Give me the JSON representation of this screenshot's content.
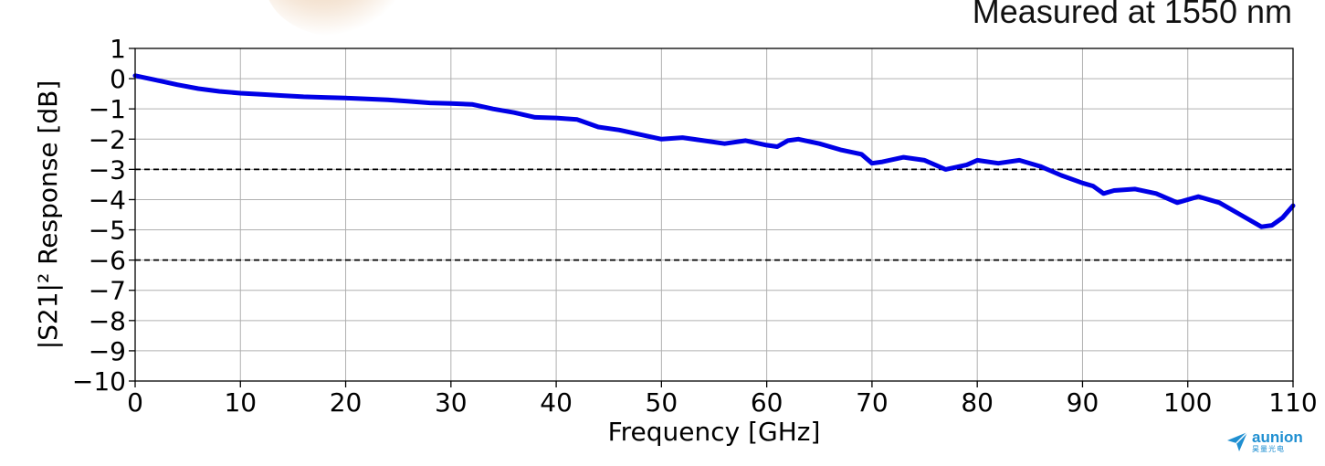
{
  "annotation": "Measured at 1550 nm",
  "logo": {
    "name": "aunion",
    "subtext": "昊量光电"
  },
  "colors": {
    "series": "#0000e6",
    "grid": "#b0b0b0",
    "reference": "#000000",
    "logo": "#1f8fd1"
  },
  "chart_data": {
    "type": "line",
    "title": "",
    "xlabel": "Frequency [GHz]",
    "ylabel": "|S21|² Response [dB]",
    "xlim": [
      0,
      110
    ],
    "ylim": [
      -10,
      1
    ],
    "xticks": [
      0,
      10,
      20,
      30,
      40,
      50,
      60,
      70,
      80,
      90,
      100,
      110
    ],
    "yticks": [
      1,
      0,
      -1,
      -2,
      -3,
      -4,
      -5,
      -6,
      -7,
      -8,
      -9,
      -10
    ],
    "ytick_labels": [
      "1",
      "0",
      "−1",
      "−2",
      "−3",
      "−4",
      "−5",
      "−6",
      "−7",
      "−8",
      "−9",
      "−10"
    ],
    "grid": true,
    "reference_lines": [
      {
        "y": -3,
        "style": "dashed"
      },
      {
        "y": -6,
        "style": "dashed"
      }
    ],
    "series": [
      {
        "x": [
          0,
          2,
          4,
          6,
          8,
          10,
          12,
          14,
          16,
          18,
          20,
          22,
          24,
          26,
          28,
          30,
          32,
          34,
          36,
          38,
          40,
          42,
          44,
          46,
          48,
          50,
          52,
          54,
          56,
          58,
          60,
          61,
          62,
          63,
          65,
          67,
          69,
          70,
          71,
          73,
          75,
          77,
          79,
          80,
          82,
          84,
          86,
          88,
          90,
          91,
          92,
          93,
          95,
          97,
          99,
          101,
          103,
          105,
          107,
          108,
          109,
          110
        ],
        "y": [
          0.1,
          -0.05,
          -0.2,
          -0.33,
          -0.42,
          -0.48,
          -0.52,
          -0.56,
          -0.6,
          -0.62,
          -0.64,
          -0.67,
          -0.7,
          -0.75,
          -0.8,
          -0.82,
          -0.85,
          -1.0,
          -1.12,
          -1.28,
          -1.3,
          -1.35,
          -1.6,
          -1.7,
          -1.85,
          -2.0,
          -1.95,
          -2.05,
          -2.15,
          -2.05,
          -2.2,
          -2.25,
          -2.05,
          -2.0,
          -2.15,
          -2.35,
          -2.5,
          -2.8,
          -2.75,
          -2.6,
          -2.7,
          -3.0,
          -2.85,
          -2.7,
          -2.8,
          -2.7,
          -2.9,
          -3.2,
          -3.45,
          -3.55,
          -3.8,
          -3.7,
          -3.65,
          -3.8,
          -4.1,
          -3.9,
          -4.1,
          -4.5,
          -4.9,
          -4.85,
          -4.6,
          -4.2
        ]
      }
    ]
  }
}
